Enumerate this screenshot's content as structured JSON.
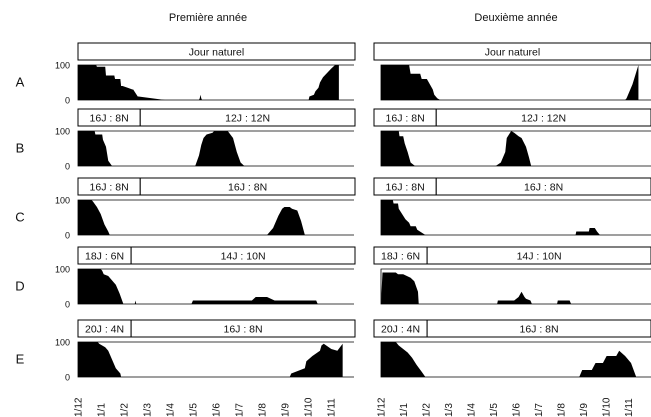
{
  "columns": [
    {
      "id": "year1",
      "title": "Première année"
    },
    {
      "id": "year2",
      "title": "Deuxième année"
    }
  ],
  "date_ticks": [
    "1/12",
    "1/1",
    "1/2",
    "1/3",
    "1/4",
    "1/5",
    "1/6",
    "1/7",
    "1/8",
    "1/9",
    "1/10",
    "1/11"
  ],
  "colors": {
    "fill": "#000000",
    "frame": "#000000",
    "banner_bg": "#ffffff"
  },
  "chart_data": [
    {
      "type": "area",
      "row": "A",
      "column": "Première année",
      "ylim": [
        0,
        100
      ],
      "yticks": [
        0,
        100
      ],
      "periods": [
        {
          "label": "Jour naturel",
          "start": 0,
          "end": 365
        }
      ],
      "x": [
        0,
        24,
        25,
        36,
        37,
        48,
        49,
        56,
        57,
        59,
        72,
        73,
        79,
        80,
        115,
        118,
        160,
        161,
        162,
        163,
        164,
        165,
        200,
        250,
        300,
        305,
        306,
        312,
        314,
        318,
        320,
        324,
        335,
        340,
        345
      ],
      "values": [
        100,
        100,
        95,
        95,
        70,
        70,
        60,
        60,
        40,
        40,
        30,
        30,
        10,
        10,
        0,
        0,
        0,
        5,
        15,
        5,
        0,
        0,
        0,
        0,
        0,
        0,
        10,
        15,
        25,
        35,
        50,
        65,
        90,
        100,
        100
      ]
    },
    {
      "type": "area",
      "row": "A",
      "column": "Deuxième année",
      "ylim": [
        0,
        100
      ],
      "yticks": [
        0,
        100
      ],
      "periods": [
        {
          "label": "Jour naturel",
          "start": 0,
          "end": 365
        }
      ],
      "x": [
        0,
        38,
        40,
        53,
        55,
        62,
        66,
        70,
        72,
        76,
        80,
        100,
        200,
        300,
        330,
        332,
        340,
        348
      ],
      "values": [
        100,
        100,
        75,
        75,
        60,
        60,
        45,
        30,
        15,
        5,
        0,
        0,
        0,
        0,
        0,
        5,
        45,
        100
      ]
    },
    {
      "type": "area",
      "row": "B",
      "column": "Première année",
      "ylim": [
        0,
        100
      ],
      "yticks": [
        0,
        100
      ],
      "periods": [
        {
          "label": "16J : 8N",
          "start": 0,
          "end": 82
        },
        {
          "label": "12J : 12N",
          "start": 82,
          "end": 365
        }
      ],
      "x": [
        0,
        22,
        23,
        32,
        33,
        37,
        40,
        45,
        100,
        155,
        160,
        163,
        166,
        170,
        178,
        180,
        198,
        205,
        210,
        215,
        220,
        255,
        300,
        345
      ],
      "values": [
        100,
        100,
        90,
        90,
        75,
        55,
        15,
        0,
        0,
        0,
        30,
        60,
        80,
        90,
        95,
        100,
        100,
        80,
        40,
        10,
        0,
        0,
        0,
        0
      ]
    },
    {
      "type": "area",
      "row": "B",
      "column": "Deuxième année",
      "ylim": [
        0,
        100
      ],
      "yticks": [
        0,
        100
      ],
      "periods": [
        {
          "label": "16J : 8N",
          "start": 0,
          "end": 82
        },
        {
          "label": "12J : 12N",
          "start": 82,
          "end": 365
        }
      ],
      "x": [
        0,
        24,
        25,
        30,
        32,
        36,
        40,
        46,
        100,
        155,
        162,
        168,
        170,
        173,
        176,
        180,
        186,
        190,
        196,
        200,
        203,
        260,
        348
      ],
      "values": [
        100,
        100,
        85,
        85,
        65,
        40,
        10,
        0,
        0,
        0,
        10,
        40,
        80,
        90,
        100,
        95,
        85,
        80,
        55,
        25,
        0,
        0,
        0
      ]
    },
    {
      "type": "area",
      "row": "C",
      "column": "Première année",
      "ylim": [
        0,
        100
      ],
      "yticks": [
        0,
        100
      ],
      "periods": [
        {
          "label": "16J : 8N",
          "start": 0,
          "end": 82
        },
        {
          "label": "16J : 8N",
          "start": 82,
          "end": 365
        }
      ],
      "x": [
        0,
        18,
        20,
        25,
        30,
        35,
        40,
        42,
        100,
        200,
        250,
        258,
        265,
        270,
        273,
        280,
        283,
        290,
        295,
        300,
        348
      ],
      "values": [
        100,
        100,
        95,
        80,
        60,
        30,
        10,
        0,
        0,
        0,
        0,
        20,
        55,
        75,
        80,
        80,
        75,
        70,
        40,
        0,
        0
      ]
    },
    {
      "type": "area",
      "row": "C",
      "column": "Deuxième année",
      "ylim": [
        0,
        100
      ],
      "yticks": [
        0,
        100
      ],
      "periods": [
        {
          "label": "16J : 8N",
          "start": 0,
          "end": 82
        },
        {
          "label": "16J : 8N",
          "start": 82,
          "end": 365
        }
      ],
      "x": [
        0,
        16,
        17,
        23,
        24,
        30,
        33,
        38,
        40,
        47,
        49,
        60,
        100,
        200,
        263,
        264,
        281,
        282,
        289,
        292,
        296,
        348
      ],
      "values": [
        100,
        100,
        90,
        90,
        75,
        55,
        45,
        35,
        25,
        25,
        15,
        0,
        0,
        0,
        0,
        10,
        10,
        20,
        20,
        10,
        0,
        0
      ]
    },
    {
      "type": "area",
      "row": "D",
      "column": "Première année",
      "ylim": [
        0,
        100
      ],
      "yticks": [
        0,
        100
      ],
      "periods": [
        {
          "label": "18J : 6N",
          "start": 0,
          "end": 70
        },
        {
          "label": "14J : 10N",
          "start": 70,
          "end": 365
        }
      ],
      "x": [
        0,
        30,
        32,
        34,
        40,
        50,
        55,
        60,
        75,
        76,
        77,
        78,
        100,
        150,
        152,
        230,
        235,
        250,
        260,
        315,
        317,
        340
      ],
      "values": [
        100,
        100,
        95,
        85,
        80,
        55,
        30,
        0,
        0,
        10,
        0,
        0,
        0,
        0,
        10,
        10,
        20,
        20,
        10,
        10,
        0,
        0
      ]
    },
    {
      "type": "area",
      "row": "D",
      "column": "Deuxième année",
      "ylim": [
        0,
        100
      ],
      "yticks": [
        0,
        100
      ],
      "periods": [
        {
          "label": "18J : 6N",
          "start": 0,
          "end": 70
        },
        {
          "label": "14J : 10N",
          "start": 70,
          "end": 365
        }
      ],
      "x": [
        0,
        2,
        20,
        23,
        30,
        40,
        45,
        50,
        51,
        100,
        157,
        158,
        180,
        186,
        190,
        194,
        196,
        202,
        204,
        238,
        239,
        255,
        257,
        290,
        348
      ],
      "values": [
        0,
        90,
        90,
        85,
        85,
        75,
        65,
        35,
        0,
        0,
        0,
        10,
        10,
        20,
        35,
        20,
        15,
        10,
        0,
        0,
        10,
        10,
        0,
        0,
        0
      ]
    },
    {
      "type": "area",
      "row": "E",
      "column": "Première année",
      "ylim": [
        0,
        100
      ],
      "yticks": [
        0,
        100
      ],
      "periods": [
        {
          "label": "20J : 4N",
          "start": 0,
          "end": 70
        },
        {
          "label": "16J : 8N",
          "start": 70,
          "end": 365
        }
      ],
      "x": [
        0,
        26,
        28,
        36,
        40,
        44,
        50,
        56,
        57,
        100,
        200,
        280,
        282,
        300,
        302,
        310,
        320,
        322,
        325,
        335,
        343,
        350
      ],
      "values": [
        100,
        100,
        95,
        85,
        75,
        55,
        25,
        10,
        0,
        0,
        0,
        0,
        10,
        25,
        45,
        60,
        75,
        90,
        95,
        80,
        75,
        95
      ]
    },
    {
      "type": "area",
      "row": "E",
      "column": "Deuxième année",
      "ylim": [
        0,
        100
      ],
      "yticks": [
        0,
        100
      ],
      "periods": [
        {
          "label": "20J : 4N",
          "start": 0,
          "end": 70
        },
        {
          "label": "16J : 8N",
          "start": 70,
          "end": 365
        }
      ],
      "x": [
        0,
        20,
        24,
        30,
        36,
        42,
        48,
        55,
        60,
        100,
        200,
        268,
        272,
        285,
        290,
        300,
        305,
        318,
        322,
        330,
        338,
        345
      ],
      "values": [
        100,
        100,
        90,
        80,
        70,
        55,
        35,
        15,
        0,
        0,
        0,
        0,
        20,
        20,
        40,
        40,
        60,
        60,
        75,
        60,
        40,
        0
      ]
    }
  ]
}
